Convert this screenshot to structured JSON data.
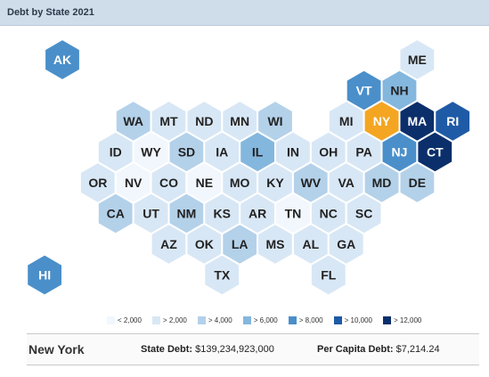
{
  "title": "Debt by State 2021",
  "colors": {
    "lt2000": "#f2f7fd",
    "gt2000": "#d8e7f5",
    "gt4000": "#b4d1ea",
    "gt6000": "#84b7de",
    "gt8000": "#4a8fca",
    "gt10000": "#1f5aa6",
    "gt12000": "#0b2f6b",
    "selected": "#f4a522"
  },
  "legend": [
    {
      "label": "< 2,000",
      "color": "#f2f7fd"
    },
    {
      "label": "> 2,000",
      "color": "#d8e7f5"
    },
    {
      "label": "> 4,000",
      "color": "#b4d1ea"
    },
    {
      "label": "> 6,000",
      "color": "#84b7de"
    },
    {
      "label": "> 8,000",
      "color": "#4a8fca"
    },
    {
      "label": "> 10,000",
      "color": "#1f5aa6"
    },
    {
      "label": "> 12,000",
      "color": "#0b2f6b"
    }
  ],
  "chart_data": {
    "type": "heatmap",
    "title": "Debt by State 2021",
    "states": [
      {
        "abbr": "AK",
        "category": "gt8000",
        "row": 0,
        "col": 0
      },
      {
        "abbr": "ME",
        "category": "gt2000",
        "row": 0,
        "col": 10
      },
      {
        "abbr": "VT",
        "category": "gt8000",
        "row": 1,
        "col": 9
      },
      {
        "abbr": "NH",
        "category": "gt6000",
        "row": 1,
        "col": 10
      },
      {
        "abbr": "WA",
        "category": "gt4000",
        "row": 2,
        "col": 2
      },
      {
        "abbr": "MT",
        "category": "gt2000",
        "row": 2,
        "col": 3
      },
      {
        "abbr": "ND",
        "category": "gt2000",
        "row": 2,
        "col": 4
      },
      {
        "abbr": "MN",
        "category": "gt2000",
        "row": 2,
        "col": 5
      },
      {
        "abbr": "WI",
        "category": "gt4000",
        "row": 2,
        "col": 6
      },
      {
        "abbr": "MI",
        "category": "gt2000",
        "row": 2,
        "col": 8
      },
      {
        "abbr": "NY",
        "category": "selected",
        "row": 2,
        "col": 9
      },
      {
        "abbr": "MA",
        "category": "gt12000",
        "row": 2,
        "col": 10
      },
      {
        "abbr": "RI",
        "category": "gt10000",
        "row": 2,
        "col": 11
      },
      {
        "abbr": "ID",
        "category": "gt2000",
        "row": 3,
        "col": 2
      },
      {
        "abbr": "WY",
        "category": "lt2000",
        "row": 3,
        "col": 3
      },
      {
        "abbr": "SD",
        "category": "gt4000",
        "row": 3,
        "col": 4
      },
      {
        "abbr": "IA",
        "category": "gt2000",
        "row": 3,
        "col": 5
      },
      {
        "abbr": "IL",
        "category": "gt6000",
        "row": 3,
        "col": 6
      },
      {
        "abbr": "IN",
        "category": "gt2000",
        "row": 3,
        "col": 7
      },
      {
        "abbr": "OH",
        "category": "gt2000",
        "row": 3,
        "col": 8
      },
      {
        "abbr": "PA",
        "category": "gt2000",
        "row": 3,
        "col": 9
      },
      {
        "abbr": "NJ",
        "category": "gt8000",
        "row": 3,
        "col": 10
      },
      {
        "abbr": "CT",
        "category": "gt12000",
        "row": 3,
        "col": 11
      },
      {
        "abbr": "OR",
        "category": "gt2000",
        "row": 4,
        "col": 1
      },
      {
        "abbr": "NV",
        "category": "lt2000",
        "row": 4,
        "col": 2
      },
      {
        "abbr": "CO",
        "category": "gt2000",
        "row": 4,
        "col": 3
      },
      {
        "abbr": "NE",
        "category": "lt2000",
        "row": 4,
        "col": 4
      },
      {
        "abbr": "MO",
        "category": "gt2000",
        "row": 4,
        "col": 5
      },
      {
        "abbr": "KY",
        "category": "gt2000",
        "row": 4,
        "col": 6
      },
      {
        "abbr": "WV",
        "category": "gt4000",
        "row": 4,
        "col": 7
      },
      {
        "abbr": "VA",
        "category": "gt2000",
        "row": 4,
        "col": 8
      },
      {
        "abbr": "MD",
        "category": "gt4000",
        "row": 4,
        "col": 9
      },
      {
        "abbr": "DE",
        "category": "gt4000",
        "row": 4,
        "col": 10
      },
      {
        "abbr": "CA",
        "category": "gt4000",
        "row": 5,
        "col": 2
      },
      {
        "abbr": "UT",
        "category": "gt2000",
        "row": 5,
        "col": 3
      },
      {
        "abbr": "NM",
        "category": "gt4000",
        "row": 5,
        "col": 4
      },
      {
        "abbr": "KS",
        "category": "gt2000",
        "row": 5,
        "col": 5
      },
      {
        "abbr": "AR",
        "category": "gt2000",
        "row": 5,
        "col": 6
      },
      {
        "abbr": "TN",
        "category": "lt2000",
        "row": 5,
        "col": 7
      },
      {
        "abbr": "NC",
        "category": "gt2000",
        "row": 5,
        "col": 8
      },
      {
        "abbr": "SC",
        "category": "gt2000",
        "row": 5,
        "col": 9
      },
      {
        "abbr": "AZ",
        "category": "gt2000",
        "row": 6,
        "col": 3
      },
      {
        "abbr": "OK",
        "category": "gt2000",
        "row": 6,
        "col": 4
      },
      {
        "abbr": "LA",
        "category": "gt4000",
        "row": 6,
        "col": 5
      },
      {
        "abbr": "MS",
        "category": "gt2000",
        "row": 6,
        "col": 6
      },
      {
        "abbr": "AL",
        "category": "gt2000",
        "row": 6,
        "col": 7
      },
      {
        "abbr": "GA",
        "category": "gt2000",
        "row": 6,
        "col": 8
      },
      {
        "abbr": "HI",
        "category": "gt8000",
        "row": 7,
        "col": 0
      },
      {
        "abbr": "TX",
        "category": "gt2000",
        "row": 7,
        "col": 5
      },
      {
        "abbr": "FL",
        "category": "gt2000",
        "row": 7,
        "col": 8
      }
    ]
  },
  "info": {
    "state": "New York",
    "state_debt_label": "State Debt:",
    "state_debt_value": "$139,234,923,000",
    "per_capita_label": "Per Capita Debt:",
    "per_capita_value": "$7,214.24"
  }
}
